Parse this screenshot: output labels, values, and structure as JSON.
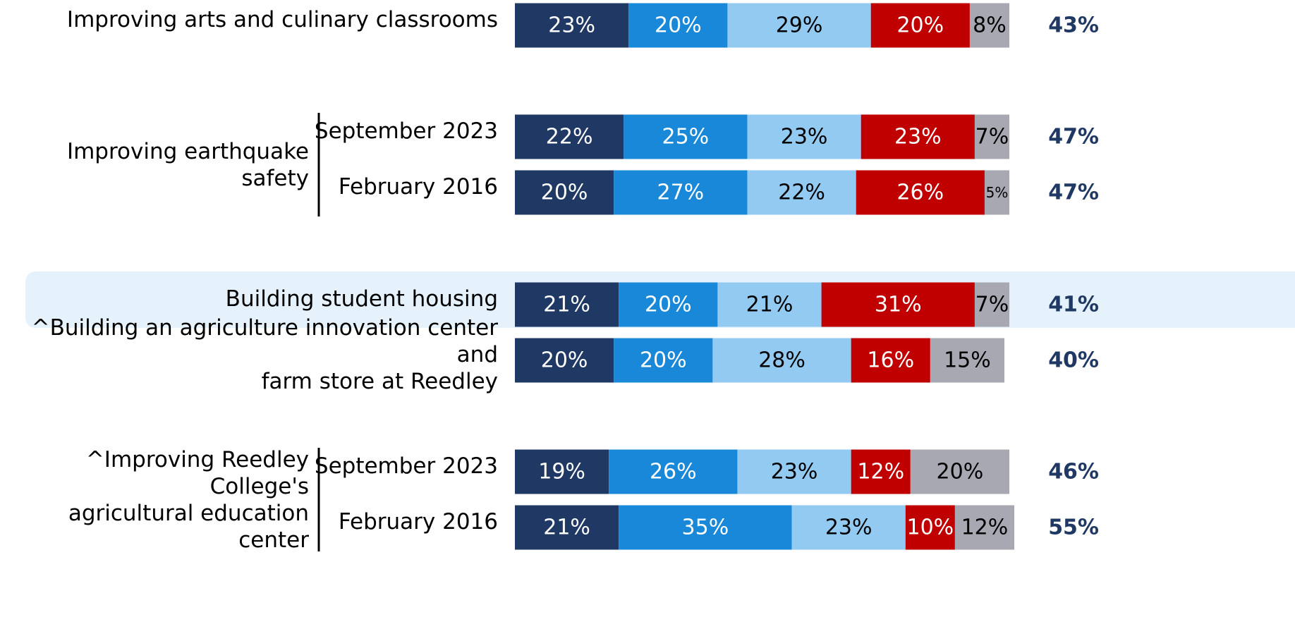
{
  "chart_data": {
    "type": "stacked-bar",
    "orientation": "horizontal",
    "categories": [
      "Improving arts and culinary classrooms",
      "September 2023",
      "February 2016",
      "Building student housing",
      "^Building an agriculture innovation center and\nfarm store at Reedley",
      "September 2023",
      "February 2016"
    ],
    "groups": [
      {
        "label": "Improving earthquake safety",
        "members": [
          1,
          2
        ]
      },
      {
        "label": "^Improving Reedley College's\nagricultural education center",
        "members": [
          5,
          6
        ]
      }
    ],
    "highlight": 3,
    "xlim": [
      0,
      100
    ],
    "series": [
      {
        "color": "#1f3864",
        "text_color": "#ffffff",
        "values": [
          23,
          22,
          20,
          21,
          20,
          19,
          21
        ],
        "value_labels": [
          "23%",
          "22%",
          "20%",
          "21%",
          "20%",
          "19%",
          "21%"
        ]
      },
      {
        "color": "#1a88d8",
        "text_color": "#ffffff",
        "values": [
          20,
          25,
          27,
          20,
          20,
          26,
          35
        ],
        "value_labels": [
          "20%",
          "25%",
          "27%",
          "20%",
          "20%",
          "26%",
          "35%"
        ]
      },
      {
        "color": "#92caf2",
        "text_color": "#000000",
        "values": [
          29,
          23,
          22,
          21,
          28,
          23,
          23
        ],
        "value_labels": [
          "29%",
          "23%",
          "22%",
          "21%",
          "28%",
          "23%",
          "23%"
        ]
      },
      {
        "color": "#c00000",
        "text_color": "#ffffff",
        "values": [
          20,
          23,
          26,
          31,
          16,
          12,
          10
        ],
        "value_labels": [
          "20%",
          "23%",
          "26%",
          "31%",
          "16%",
          "12%",
          "10%"
        ]
      },
      {
        "color": "#a7a8b2",
        "text_color": "#000000",
        "values": [
          8,
          7,
          5,
          7,
          15,
          20,
          12
        ],
        "value_labels": [
          "8%",
          "7%",
          "5%",
          "7%",
          "15%",
          "20%",
          "12%"
        ]
      }
    ],
    "totals": {
      "color": "#1f3864",
      "values": [
        43,
        47,
        47,
        41,
        40,
        46,
        55
      ],
      "value_labels": [
        "43%",
        "47%",
        "47%",
        "41%",
        "40%",
        "46%",
        "55%"
      ]
    }
  }
}
